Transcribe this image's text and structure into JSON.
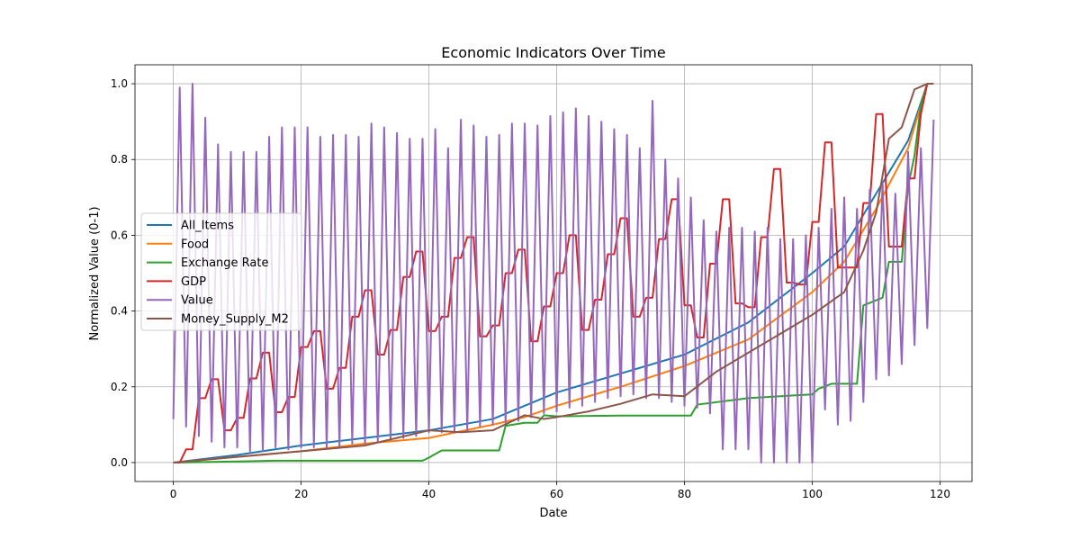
{
  "chart_data": {
    "type": "line",
    "title": "Economic Indicators Over Time",
    "xlabel": "Date",
    "ylabel": "Normalized Value (0-1)",
    "xlim": [
      -6,
      125
    ],
    "ylim": [
      -0.05,
      1.05
    ],
    "xticks": [
      0,
      20,
      40,
      60,
      80,
      100,
      120
    ],
    "yticks": [
      0.0,
      0.2,
      0.4,
      0.6,
      0.8,
      1.0
    ],
    "xtick_labels": [
      "0",
      "20",
      "40",
      "60",
      "80",
      "100",
      "120"
    ],
    "ytick_labels": [
      "0.0",
      "0.2",
      "0.4",
      "0.6",
      "0.8",
      "1.0"
    ],
    "grid": true,
    "legend_position": "center-left",
    "series": [
      {
        "name": "All_Items",
        "color": "#1f77b4",
        "x": [
          0,
          10,
          20,
          30,
          40,
          50,
          55,
          60,
          70,
          80,
          90,
          100,
          105,
          110,
          115,
          118
        ],
        "y": [
          0.0,
          0.02,
          0.045,
          0.065,
          0.085,
          0.115,
          0.15,
          0.185,
          0.235,
          0.285,
          0.37,
          0.5,
          0.57,
          0.71,
          0.85,
          1.0
        ]
      },
      {
        "name": "Food",
        "color": "#ff7f0e",
        "x": [
          0,
          10,
          20,
          30,
          40,
          50,
          55,
          60,
          70,
          80,
          90,
          100,
          105,
          110,
          115,
          118
        ],
        "y": [
          0.0,
          0.015,
          0.03,
          0.05,
          0.065,
          0.1,
          0.12,
          0.15,
          0.2,
          0.255,
          0.325,
          0.45,
          0.53,
          0.67,
          0.83,
          1.0
        ]
      },
      {
        "name": "Exchange Rate",
        "color": "#2ca02c",
        "x": [
          0,
          10,
          16,
          20,
          30,
          39,
          40,
          42,
          45,
          51,
          52,
          55,
          57,
          58,
          60,
          70,
          80,
          81,
          82,
          90,
          100,
          101,
          103,
          107,
          108,
          111,
          112,
          114,
          115,
          116,
          117,
          118
        ],
        "y": [
          0.0,
          0.003,
          0.005,
          0.005,
          0.005,
          0.005,
          0.013,
          0.032,
          0.032,
          0.032,
          0.097,
          0.105,
          0.105,
          0.125,
          0.122,
          0.124,
          0.124,
          0.124,
          0.153,
          0.17,
          0.18,
          0.195,
          0.208,
          0.208,
          0.415,
          0.435,
          0.53,
          0.53,
          0.73,
          0.81,
          0.945,
          1.0
        ]
      },
      {
        "name": "GDP",
        "color": "#d62728",
        "x": [
          0,
          1,
          2,
          3,
          4,
          5,
          6,
          7,
          8,
          9,
          10,
          11,
          12,
          13,
          14,
          15,
          16,
          17,
          18,
          19,
          20,
          21,
          22,
          23,
          24,
          25,
          26,
          27,
          28,
          29,
          30,
          31,
          32,
          33,
          34,
          35,
          36,
          37,
          38,
          39,
          40,
          41,
          42,
          43,
          44,
          45,
          46,
          47,
          48,
          49,
          50,
          51,
          52,
          53,
          54,
          55,
          56,
          57,
          58,
          59,
          60,
          61,
          62,
          63,
          64,
          65,
          66,
          67,
          68,
          69,
          70,
          71,
          72,
          73,
          74,
          75,
          76,
          77,
          78,
          79,
          80,
          81,
          82,
          83,
          84,
          85,
          86,
          87,
          88,
          89,
          90,
          91,
          92,
          93,
          94,
          95,
          96,
          97,
          98,
          99,
          100,
          101,
          102,
          103,
          104,
          105,
          106,
          107,
          108,
          109,
          110,
          111,
          112,
          113,
          114,
          115,
          116,
          117,
          118
        ],
        "y": [
          0.0,
          0.0,
          0.035,
          0.035,
          0.17,
          0.17,
          0.22,
          0.22,
          0.085,
          0.085,
          0.118,
          0.118,
          0.222,
          0.222,
          0.29,
          0.29,
          0.133,
          0.133,
          0.173,
          0.173,
          0.305,
          0.305,
          0.347,
          0.347,
          0.195,
          0.195,
          0.25,
          0.25,
          0.385,
          0.385,
          0.455,
          0.455,
          0.285,
          0.285,
          0.35,
          0.35,
          0.49,
          0.49,
          0.557,
          0.557,
          0.347,
          0.347,
          0.385,
          0.385,
          0.54,
          0.54,
          0.595,
          0.595,
          0.333,
          0.333,
          0.362,
          0.362,
          0.5,
          0.5,
          0.562,
          0.562,
          0.32,
          0.32,
          0.412,
          0.412,
          0.5,
          0.5,
          0.6,
          0.6,
          0.35,
          0.35,
          0.43,
          0.43,
          0.55,
          0.55,
          0.645,
          0.645,
          0.385,
          0.385,
          0.435,
          0.435,
          0.59,
          0.59,
          0.695,
          0.695,
          0.415,
          0.415,
          0.33,
          0.33,
          0.525,
          0.525,
          0.695,
          0.695,
          0.42,
          0.42,
          0.41,
          0.41,
          0.595,
          0.595,
          0.775,
          0.775,
          0.475,
          0.475,
          0.47,
          0.47,
          0.635,
          0.635,
          0.845,
          0.845,
          0.515,
          0.515,
          0.515,
          0.515,
          0.685,
          0.685,
          0.92,
          0.92,
          0.57,
          0.57,
          0.57,
          0.75,
          0.75,
          0.92,
          1.0
        ]
      },
      {
        "name": "Value",
        "color": "#9467bd",
        "x": [
          0,
          1,
          2,
          3,
          4,
          5,
          6,
          7,
          8,
          9,
          10,
          11,
          12,
          13,
          14,
          15,
          16,
          17,
          18,
          19,
          20,
          21,
          22,
          23,
          24,
          25,
          26,
          27,
          28,
          29,
          30,
          31,
          32,
          33,
          34,
          35,
          36,
          37,
          38,
          39,
          40,
          41,
          42,
          43,
          44,
          45,
          46,
          47,
          48,
          49,
          50,
          51,
          52,
          53,
          54,
          55,
          56,
          57,
          58,
          59,
          60,
          61,
          62,
          63,
          64,
          65,
          66,
          67,
          68,
          69,
          70,
          71,
          72,
          73,
          74,
          75,
          76,
          77,
          78,
          79,
          80,
          81,
          82,
          83,
          84,
          85,
          86,
          87,
          88,
          89,
          90,
          91,
          92,
          93,
          94,
          95,
          96,
          97,
          98,
          99,
          100,
          101,
          102,
          103,
          104,
          105,
          106,
          107,
          108,
          109,
          110,
          111,
          112,
          113,
          114,
          115,
          116,
          117,
          118,
          119
        ],
        "y": [
          0.115,
          0.99,
          0.095,
          1.0,
          0.07,
          0.91,
          0.055,
          0.84,
          0.04,
          0.82,
          0.04,
          0.82,
          0.03,
          0.82,
          0.03,
          0.86,
          0.04,
          0.885,
          0.035,
          0.885,
          0.04,
          0.885,
          0.04,
          0.86,
          0.04,
          0.865,
          0.04,
          0.865,
          0.05,
          0.86,
          0.05,
          0.895,
          0.055,
          0.885,
          0.06,
          0.87,
          0.065,
          0.855,
          0.07,
          0.855,
          0.08,
          0.88,
          0.08,
          0.83,
          0.08,
          0.905,
          0.085,
          0.89,
          0.095,
          0.86,
          0.1,
          0.865,
          0.105,
          0.895,
          0.11,
          0.895,
          0.12,
          0.89,
          0.13,
          0.915,
          0.135,
          0.925,
          0.145,
          0.935,
          0.15,
          0.915,
          0.16,
          0.9,
          0.17,
          0.88,
          0.175,
          0.865,
          0.18,
          0.83,
          0.17,
          0.955,
          0.17,
          0.8,
          0.16,
          0.75,
          0.15,
          0.7,
          0.145,
          0.64,
          0.13,
          0.61,
          0.035,
          0.62,
          0.035,
          0.62,
          0.035,
          0.61,
          0.0,
          0.62,
          0.0,
          0.59,
          0.0,
          0.59,
          0.0,
          0.6,
          0.0,
          0.62,
          0.14,
          0.67,
          0.1,
          0.7,
          0.11,
          0.67,
          0.16,
          0.72,
          0.22,
          0.74,
          0.23,
          0.71,
          0.26,
          0.82,
          0.31,
          0.83,
          0.355,
          0.905
        ]
      },
      {
        "name": "Money_Supply_M2",
        "color": "#8c564b",
        "x": [
          0,
          10,
          20,
          30,
          40,
          45,
          50,
          55,
          58,
          60,
          65,
          70,
          75,
          80,
          85,
          90,
          95,
          100,
          105,
          108,
          110,
          112,
          114,
          116,
          118,
          119
        ],
        "y": [
          0.0,
          0.015,
          0.03,
          0.045,
          0.085,
          0.08,
          0.085,
          0.125,
          0.115,
          0.12,
          0.135,
          0.155,
          0.18,
          0.175,
          0.24,
          0.29,
          0.34,
          0.39,
          0.45,
          0.56,
          0.66,
          0.855,
          0.885,
          0.985,
          1.0,
          1.0
        ]
      }
    ]
  }
}
